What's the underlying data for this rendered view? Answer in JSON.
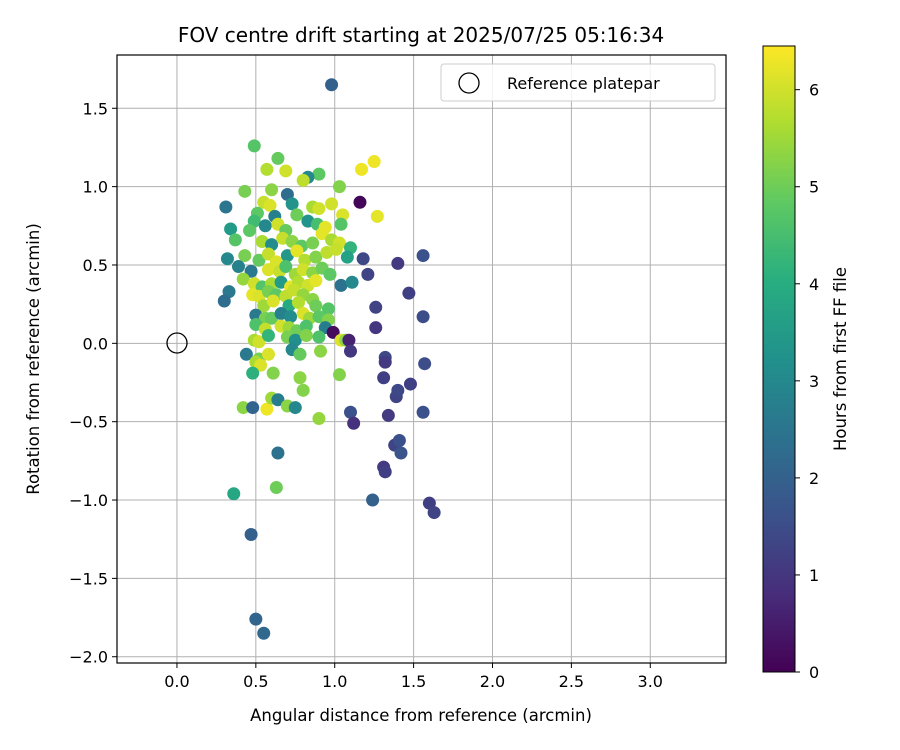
{
  "chart_data": {
    "type": "scatter",
    "title": "FOV centre drift starting at 2025/07/25 05:16:34",
    "xlabel": "Angular distance from reference (arcmin)",
    "ylabel": "Rotation from reference (arcmin)",
    "xlim": [
      -0.38,
      3.48
    ],
    "ylim": [
      -2.04,
      1.84
    ],
    "xticks": [
      "0.0",
      "0.5",
      "1.0",
      "1.5",
      "2.0",
      "2.5",
      "3.0"
    ],
    "yticks": [
      "1.5",
      "1.0",
      "0.5",
      "0.0",
      "−0.5",
      "−1.0",
      "−1.5",
      "−2.0"
    ],
    "grid": true,
    "legend": {
      "label": "Reference platepar",
      "placement": "top-right"
    },
    "colorbar": {
      "label": "Hours from first FF file",
      "colormap": "viridis",
      "range": [
        0,
        6.45
      ],
      "ticks": [
        "0",
        "1",
        "2",
        "3",
        "4",
        "5",
        "6"
      ]
    },
    "reference_point": {
      "x": 0.0,
      "y": 0.0
    },
    "series": [
      {
        "points": [
          [
            0.98,
            1.65,
            2.0
          ],
          [
            0.49,
            1.26,
            4.7
          ],
          [
            0.57,
            1.11,
            5.7
          ],
          [
            0.64,
            1.18,
            4.9
          ],
          [
            0.69,
            1.1,
            6.0
          ],
          [
            0.9,
            1.08,
            4.8
          ],
          [
            0.83,
            1.06,
            3.0
          ],
          [
            0.8,
            1.04,
            5.8
          ],
          [
            1.03,
            1.0,
            5.2
          ],
          [
            1.17,
            1.11,
            6.3
          ],
          [
            1.25,
            1.16,
            6.3
          ],
          [
            0.43,
            0.97,
            5.1
          ],
          [
            0.6,
            0.98,
            5.3
          ],
          [
            0.7,
            0.95,
            2.3
          ],
          [
            0.31,
            0.87,
            2.5
          ],
          [
            0.55,
            0.9,
            5.9
          ],
          [
            0.59,
            0.88,
            6.1
          ],
          [
            0.73,
            0.89,
            3.3
          ],
          [
            0.86,
            0.87,
            5.6
          ],
          [
            0.9,
            0.86,
            6.0
          ],
          [
            1.16,
            0.9,
            0.1
          ],
          [
            0.51,
            0.83,
            4.8
          ],
          [
            0.49,
            0.78,
            4.4
          ],
          [
            0.62,
            0.81,
            2.8
          ],
          [
            0.76,
            0.82,
            5.0
          ],
          [
            1.05,
            0.82,
            6.1
          ],
          [
            1.27,
            0.81,
            6.2
          ],
          [
            0.98,
            0.89,
            6.0
          ],
          [
            0.34,
            0.73,
            3.5
          ],
          [
            0.46,
            0.72,
            4.8
          ],
          [
            0.56,
            0.75,
            3.0
          ],
          [
            0.64,
            0.76,
            6.0
          ],
          [
            0.69,
            0.72,
            4.9
          ],
          [
            0.83,
            0.78,
            3.3
          ],
          [
            0.89,
            0.76,
            4.5
          ],
          [
            0.94,
            0.74,
            6.2
          ],
          [
            1.04,
            0.76,
            4.7
          ],
          [
            0.37,
            0.66,
            4.7
          ],
          [
            0.54,
            0.65,
            5.6
          ],
          [
            0.6,
            0.63,
            3.1
          ],
          [
            0.67,
            0.67,
            5.9
          ],
          [
            0.73,
            0.65,
            5.3
          ],
          [
            0.79,
            0.62,
            4.8
          ],
          [
            0.86,
            0.64,
            5.1
          ],
          [
            0.92,
            0.7,
            6.2
          ],
          [
            0.98,
            0.66,
            5.6
          ],
          [
            1.03,
            0.64,
            6.0
          ],
          [
            1.1,
            0.61,
            4.2
          ],
          [
            0.32,
            0.54,
            3.0
          ],
          [
            0.43,
            0.56,
            5.1
          ],
          [
            0.52,
            0.53,
            4.9
          ],
          [
            0.58,
            0.57,
            5.9
          ],
          [
            0.63,
            0.52,
            6.1
          ],
          [
            0.7,
            0.56,
            3.4
          ],
          [
            0.76,
            0.59,
            6.2
          ],
          [
            0.81,
            0.53,
            5.7
          ],
          [
            0.88,
            0.55,
            5.2
          ],
          [
            0.95,
            0.58,
            5.8
          ],
          [
            1.01,
            0.6,
            5.9
          ],
          [
            1.08,
            0.55,
            3.7
          ],
          [
            1.18,
            0.54,
            1.4
          ],
          [
            1.4,
            0.51,
            1.1
          ],
          [
            1.56,
            0.56,
            1.6
          ],
          [
            0.39,
            0.49,
            2.8
          ],
          [
            0.47,
            0.46,
            2.6
          ],
          [
            0.58,
            0.47,
            6.1
          ],
          [
            0.65,
            0.46,
            5.9
          ],
          [
            0.69,
            0.49,
            4.6
          ],
          [
            0.75,
            0.44,
            5.5
          ],
          [
            0.8,
            0.47,
            6.0
          ],
          [
            0.86,
            0.45,
            5.3
          ],
          [
            0.92,
            0.48,
            5.0
          ],
          [
            0.97,
            0.44,
            4.8
          ],
          [
            1.21,
            0.44,
            1.3
          ],
          [
            0.42,
            0.41,
            5.4
          ],
          [
            0.49,
            0.38,
            6.0
          ],
          [
            0.54,
            0.36,
            4.7
          ],
          [
            0.6,
            0.38,
            5.6
          ],
          [
            0.66,
            0.39,
            3.5
          ],
          [
            0.72,
            0.36,
            6.2
          ],
          [
            0.77,
            0.39,
            5.7
          ],
          [
            0.83,
            0.37,
            6.0
          ],
          [
            0.88,
            0.4,
            6.2
          ],
          [
            1.04,
            0.37,
            2.4
          ],
          [
            1.11,
            0.39,
            3.0
          ],
          [
            0.33,
            0.33,
            2.6
          ],
          [
            0.48,
            0.31,
            6.2
          ],
          [
            0.52,
            0.3,
            6.1
          ],
          [
            0.58,
            0.33,
            5.1
          ],
          [
            0.63,
            0.31,
            4.8
          ],
          [
            0.69,
            0.3,
            5.8
          ],
          [
            0.74,
            0.34,
            5.9
          ],
          [
            0.8,
            0.31,
            5.4
          ],
          [
            0.86,
            0.28,
            5.3
          ],
          [
            1.47,
            0.32,
            1.2
          ],
          [
            0.3,
            0.27,
            2.3
          ],
          [
            0.55,
            0.24,
            5.5
          ],
          [
            0.61,
            0.27,
            6.1
          ],
          [
            0.71,
            0.24,
            3.9
          ],
          [
            0.77,
            0.26,
            5.7
          ],
          [
            0.88,
            0.24,
            5.0
          ],
          [
            0.96,
            0.22,
            4.7
          ],
          [
            1.26,
            0.23,
            1.3
          ],
          [
            0.5,
            0.18,
            2.6
          ],
          [
            0.56,
            0.16,
            5.1
          ],
          [
            0.6,
            0.16,
            4.9
          ],
          [
            0.66,
            0.19,
            2.8
          ],
          [
            0.72,
            0.17,
            3.1
          ],
          [
            0.8,
            0.19,
            6.1
          ],
          [
            0.84,
            0.16,
            5.5
          ],
          [
            0.9,
            0.17,
            4.8
          ],
          [
            0.96,
            0.15,
            5.2
          ],
          [
            1.56,
            0.17,
            1.5
          ],
          [
            0.5,
            0.12,
            4.6
          ],
          [
            0.56,
            0.09,
            5.9
          ],
          [
            0.66,
            0.11,
            6.0
          ],
          [
            0.71,
            0.1,
            5.5
          ],
          [
            0.76,
            0.08,
            5.0
          ],
          [
            0.82,
            0.11,
            4.6
          ],
          [
            0.94,
            0.1,
            2.7
          ],
          [
            0.99,
            0.07,
            0.2
          ],
          [
            1.26,
            0.1,
            1.0
          ],
          [
            0.49,
            0.02,
            5.6
          ],
          [
            0.52,
            0.01,
            6.0
          ],
          [
            0.58,
            0.05,
            4.2
          ],
          [
            0.7,
            0.04,
            5.1
          ],
          [
            0.75,
            0.02,
            3.2
          ],
          [
            0.82,
            0.05,
            5.2
          ],
          [
            0.9,
            0.04,
            4.6
          ],
          [
            1.04,
            0.02,
            6.1
          ],
          [
            1.07,
            0.02,
            5.3
          ],
          [
            1.09,
            0.02,
            0.6
          ],
          [
            0.44,
            -0.07,
            2.6
          ],
          [
            0.52,
            -0.1,
            5.1
          ],
          [
            0.58,
            -0.07,
            6.1
          ],
          [
            0.73,
            -0.04,
            3.0
          ],
          [
            0.78,
            -0.07,
            4.9
          ],
          [
            0.91,
            -0.05,
            5.3
          ],
          [
            1.1,
            -0.05,
            1.0
          ],
          [
            0.5,
            -0.12,
            5.6
          ],
          [
            0.53,
            -0.14,
            6.1
          ],
          [
            1.32,
            -0.09,
            1.4
          ],
          [
            1.32,
            -0.12,
            1.1
          ],
          [
            1.57,
            -0.13,
            1.5
          ],
          [
            0.48,
            -0.19,
            4.1
          ],
          [
            0.61,
            -0.19,
            5.2
          ],
          [
            0.78,
            -0.22,
            5.3
          ],
          [
            1.03,
            -0.2,
            5.2
          ],
          [
            1.31,
            -0.22,
            1.2
          ],
          [
            1.48,
            -0.26,
            1.2
          ],
          [
            0.42,
            -0.41,
            5.3
          ],
          [
            0.48,
            -0.41,
            2.1
          ],
          [
            0.57,
            -0.42,
            6.3
          ],
          [
            0.6,
            -0.35,
            5.5
          ],
          [
            0.64,
            -0.36,
            2.7
          ],
          [
            0.7,
            -0.4,
            5.3
          ],
          [
            0.75,
            -0.41,
            3.0
          ],
          [
            0.8,
            -0.3,
            5.2
          ],
          [
            0.9,
            -0.48,
            5.4
          ],
          [
            1.1,
            -0.44,
            1.6
          ],
          [
            1.12,
            -0.51,
            0.9
          ],
          [
            1.34,
            -0.46,
            1.1
          ],
          [
            1.39,
            -0.34,
            1.3
          ],
          [
            1.4,
            -0.3,
            1.4
          ],
          [
            1.56,
            -0.44,
            1.6
          ],
          [
            0.64,
            -0.7,
            2.4
          ],
          [
            1.38,
            -0.65,
            1.3
          ],
          [
            1.41,
            -0.62,
            1.6
          ],
          [
            1.42,
            -0.7,
            1.7
          ],
          [
            1.31,
            -0.79,
            1.1
          ],
          [
            1.32,
            -0.82,
            1.2
          ],
          [
            0.36,
            -0.96,
            3.8
          ],
          [
            0.63,
            -0.92,
            5.0
          ],
          [
            1.24,
            -1.0,
            2.0
          ],
          [
            1.6,
            -1.02,
            1.2
          ],
          [
            1.63,
            -1.08,
            1.3
          ],
          [
            0.47,
            -1.22,
            2.0
          ],
          [
            0.5,
            -1.76,
            2.1
          ],
          [
            0.55,
            -1.85,
            2.2
          ]
        ]
      }
    ]
  }
}
